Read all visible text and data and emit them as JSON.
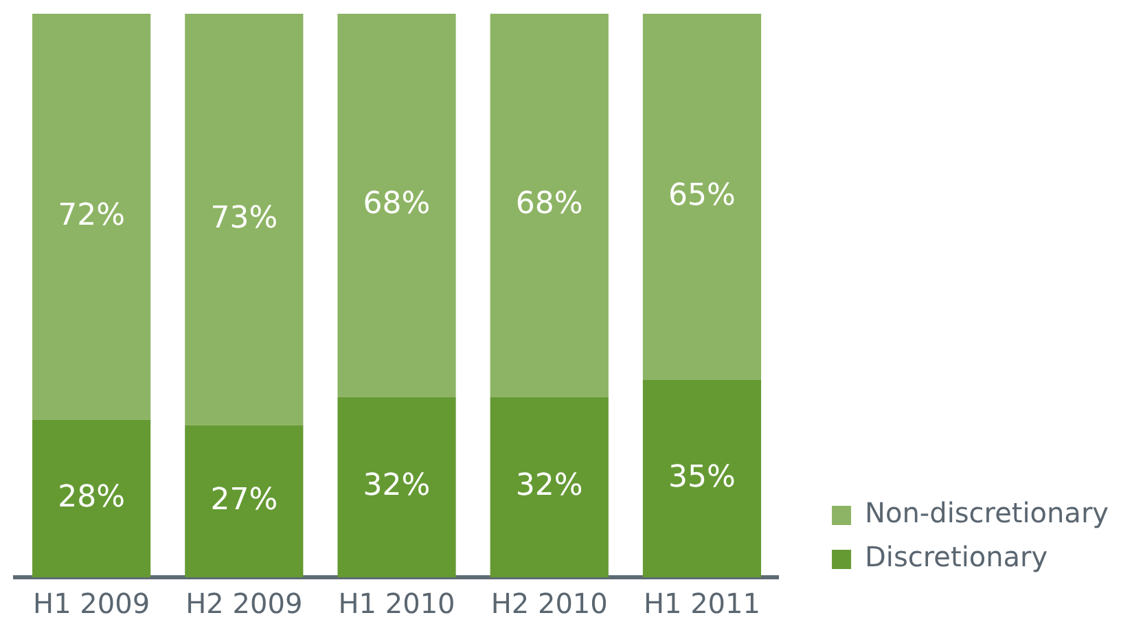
{
  "chart_data": {
    "type": "bar",
    "stacked": true,
    "categories": [
      "H1 2009",
      "H2 2009",
      "H1 2010",
      "H2 2010",
      "H1 2011"
    ],
    "series": [
      {
        "name": "Discretionary",
        "color": "#659a33",
        "values": [
          28,
          27,
          32,
          32,
          35
        ],
        "value_labels": [
          "28%",
          "27%",
          "32%",
          "32%",
          "35%"
        ]
      },
      {
        "name": "Non-discretionary",
        "color": "#8db464",
        "values": [
          72,
          73,
          68,
          68,
          65
        ],
        "value_labels": [
          "72%",
          "73%",
          "68%",
          "68%",
          "65%"
        ]
      }
    ],
    "ylim": [
      0,
      100
    ],
    "tick_labels": "x",
    "grid": false,
    "legend": "bottom right"
  }
}
